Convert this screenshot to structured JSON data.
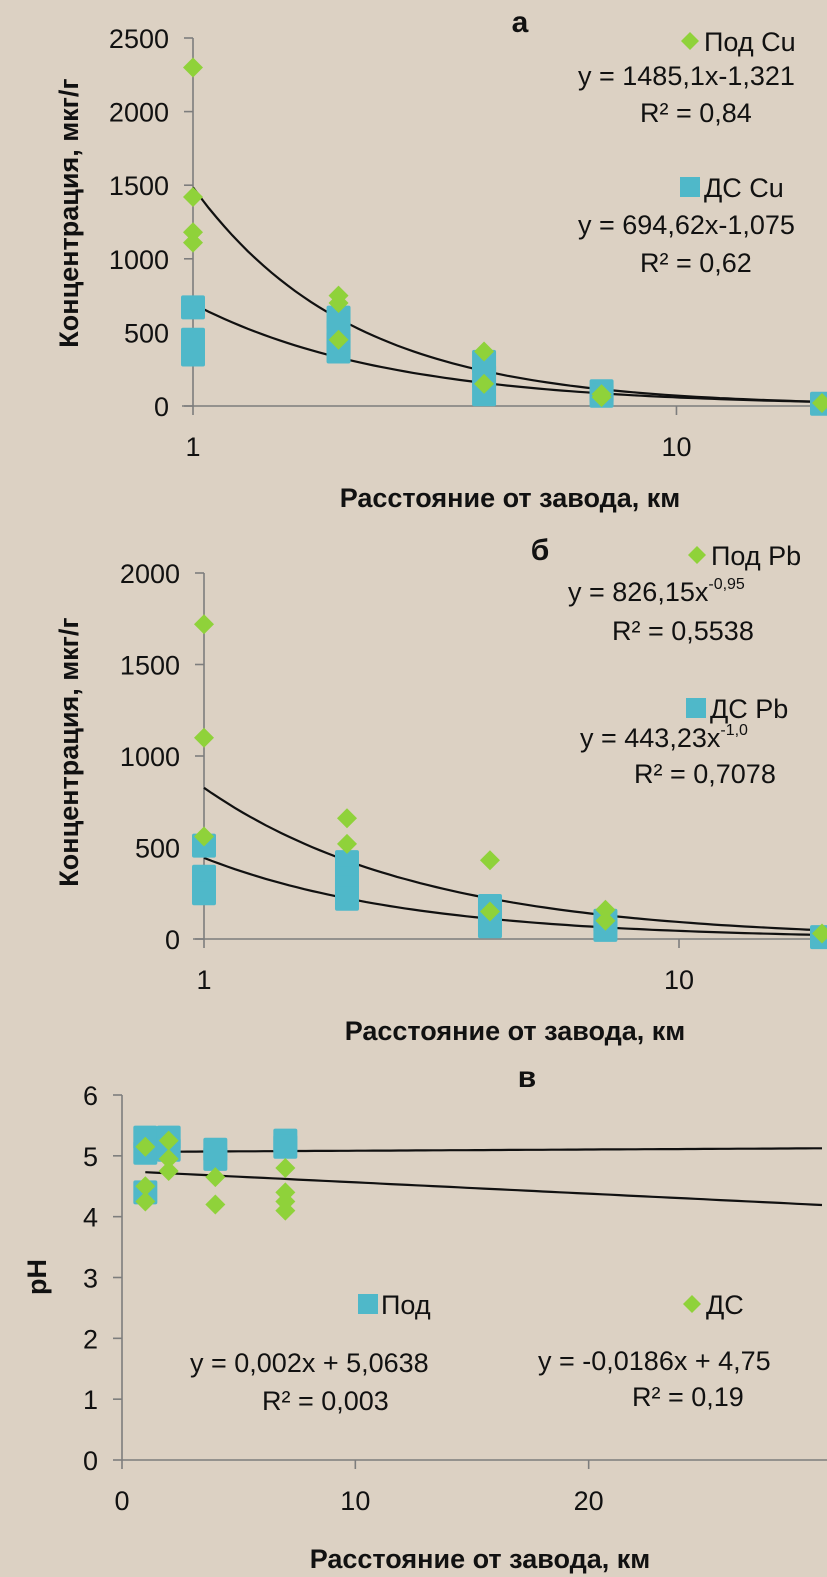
{
  "colors": {
    "background": "#dcd1c3",
    "diamond": "#8fd23a",
    "square": "#4fb8c9",
    "trend": "#111111"
  },
  "chart_data": [
    {
      "type": "scatter",
      "title": "а",
      "xlabel": "Расстояние от завода, км",
      "ylabel": "Концентрация, мкг/г",
      "xscale": "log",
      "xlim": [
        1,
        20
      ],
      "ylim": [
        0,
        2500
      ],
      "xticks": [
        "1",
        "10"
      ],
      "yticks": [
        "0",
        "500",
        "1000",
        "1500",
        "2000",
        "2500"
      ],
      "legend_position": "top-right",
      "series": [
        {
          "name": "Под Cu",
          "marker": "diamond",
          "x": [
            1,
            1,
            1,
            1,
            2,
            2,
            2,
            4,
            4,
            7,
            7,
            20
          ],
          "y": [
            2300,
            1420,
            1180,
            1110,
            750,
            700,
            450,
            370,
            150,
            80,
            60,
            20
          ],
          "equation_prefix": "y = 1485,1x",
          "equation_exponent": "-1,321",
          "r2": "R² = 0,84",
          "fit": {
            "form": "power",
            "a": 1485.1,
            "b": -1.321
          }
        },
        {
          "name": "ДС Cu",
          "marker": "square",
          "x": [
            1,
            1,
            1,
            2,
            2,
            2,
            2,
            4,
            4,
            4,
            7,
            7,
            20
          ],
          "y": [
            670,
            450,
            350,
            600,
            500,
            420,
            370,
            300,
            200,
            80,
            100,
            70,
            15
          ],
          "equation_prefix": "y = 694,62x",
          "equation_exponent": "-1,075",
          "r2": "R² = 0,62",
          "fit": {
            "form": "power",
            "a": 694.62,
            "b": -1.075
          }
        }
      ]
    },
    {
      "type": "scatter",
      "title": "б",
      "xlabel": "Расстояние от завода, км",
      "ylabel": "Концентрация, мкг/г",
      "xscale": "log",
      "xlim": [
        1,
        20
      ],
      "ylim": [
        0,
        2000
      ],
      "xticks": [
        "1",
        "10"
      ],
      "yticks": [
        "0",
        "500",
        "1000",
        "1500",
        "2000"
      ],
      "legend_position": "top-right",
      "series": [
        {
          "name": "Под Pb",
          "marker": "diamond",
          "x": [
            1,
            1,
            1,
            2,
            2,
            4,
            4,
            7,
            7,
            20
          ],
          "y": [
            1720,
            1100,
            560,
            660,
            520,
            430,
            150,
            160,
            100,
            30
          ],
          "equation_prefix": "y = 826,15x",
          "equation_exponent": "-0,95",
          "r2": "R² = 0,5538",
          "fit": {
            "form": "power",
            "a": 826.15,
            "b": -0.95
          }
        },
        {
          "name": "ДС Pb",
          "marker": "square",
          "x": [
            1,
            1,
            1,
            2,
            2,
            2,
            2,
            4,
            4,
            4,
            7,
            7,
            20
          ],
          "y": [
            510,
            340,
            250,
            420,
            330,
            280,
            220,
            180,
            120,
            70,
            100,
            50,
            10
          ],
          "equation_prefix": "y = 443,23x",
          "equation_exponent": "-1,0",
          "r2": "R² = 0,7078",
          "fit": {
            "form": "power",
            "a": 443.23,
            "b": -1.0
          }
        }
      ]
    },
    {
      "type": "scatter",
      "title": "в",
      "xlabel": "Расстояние от завода, км",
      "ylabel": "pH",
      "xscale": "linear",
      "xlim": [
        0,
        30
      ],
      "ylim": [
        0,
        6
      ],
      "xticks": [
        "0",
        "10",
        "20"
      ],
      "yticks": [
        "0",
        "1",
        "2",
        "3",
        "4",
        "5",
        "6"
      ],
      "legend_position": "bottom",
      "series": [
        {
          "name": "Под",
          "marker": "square",
          "x": [
            1,
            1,
            1,
            2,
            2,
            4,
            4,
            7,
            7
          ],
          "y": [
            5.3,
            5.05,
            4.4,
            5.3,
            5.1,
            5.1,
            4.95,
            5.25,
            5.15
          ],
          "equation_prefix": "y = 0,002x + 5,0638",
          "equation_exponent": "",
          "r2": "R² = 0,003",
          "fit": {
            "form": "linear",
            "a": 0.002,
            "b": 5.0638
          }
        },
        {
          "name": "ДС",
          "marker": "diamond",
          "x": [
            1,
            1,
            1,
            2,
            2,
            2,
            4,
            4,
            7,
            7,
            7,
            7
          ],
          "y": [
            5.15,
            4.5,
            4.25,
            5.25,
            4.95,
            4.75,
            4.65,
            4.2,
            4.8,
            4.4,
            4.25,
            4.1
          ],
          "equation_prefix": "y = -0,0186x + 4,75",
          "equation_exponent": "",
          "r2": "R² = 0,19",
          "fit": {
            "form": "linear",
            "a": -0.0186,
            "b": 4.75
          }
        }
      ]
    }
  ]
}
